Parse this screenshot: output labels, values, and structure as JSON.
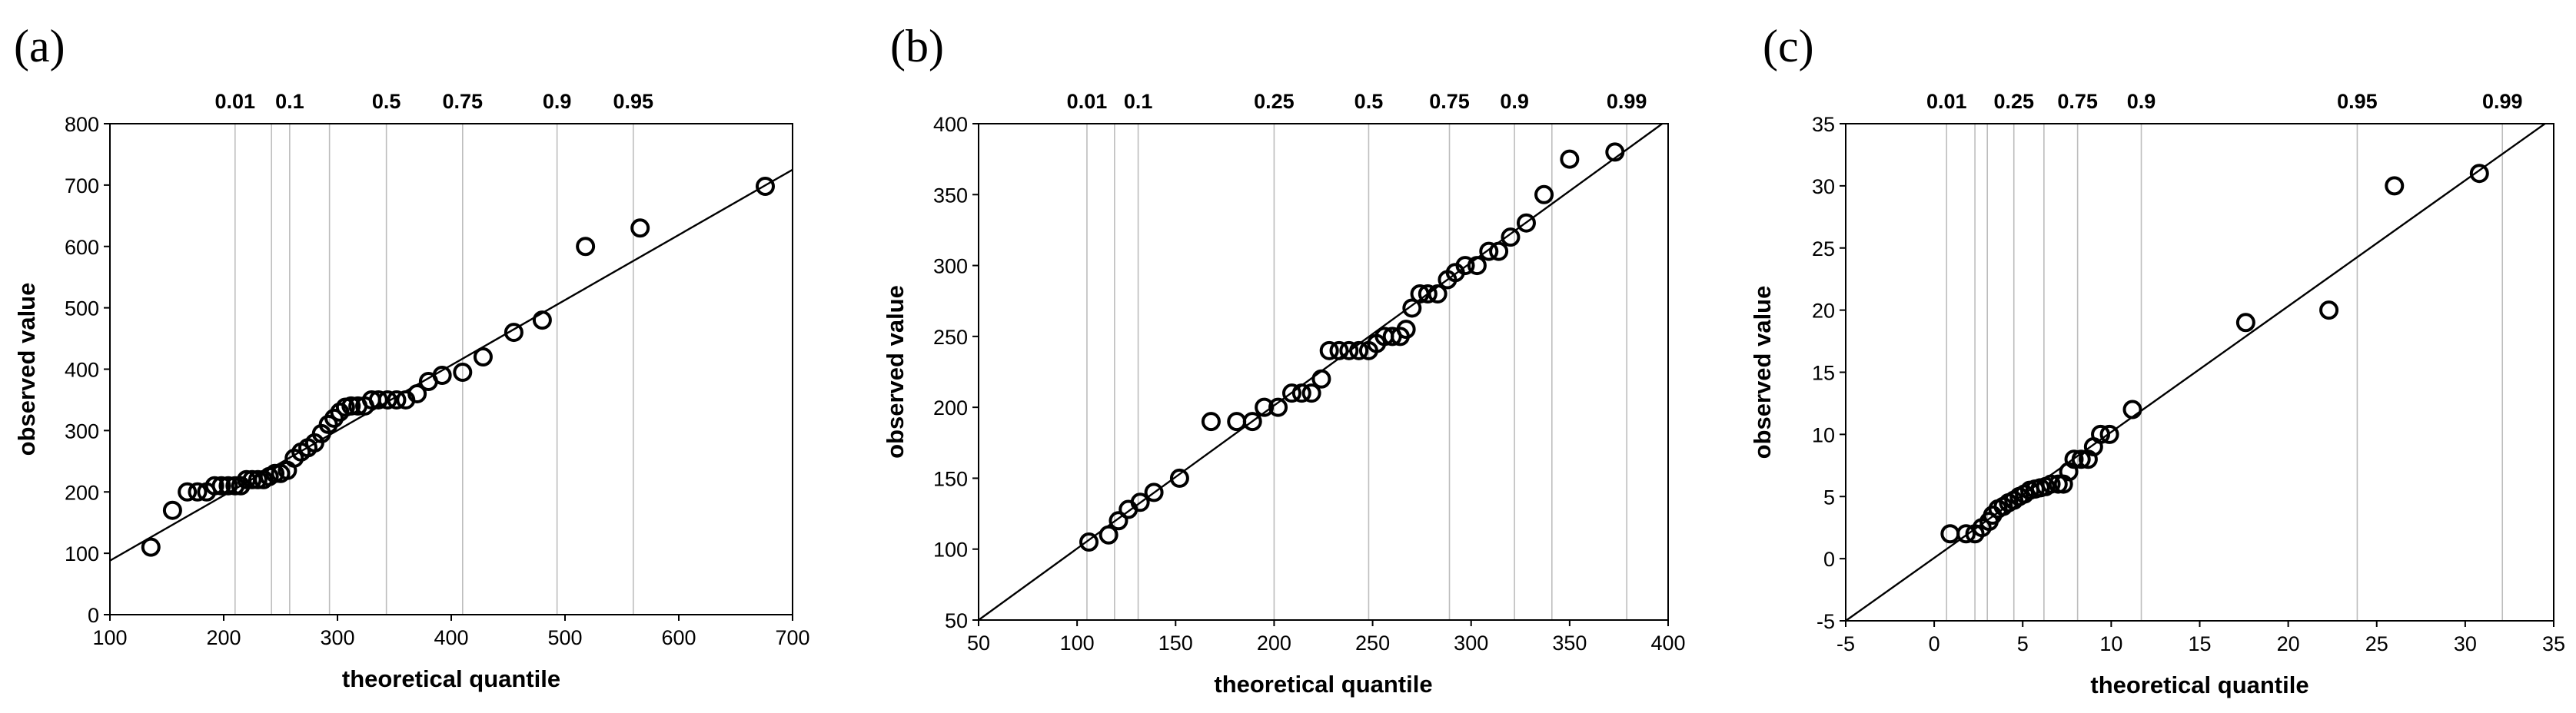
{
  "chart_data": [
    {
      "type": "scatter",
      "panel_label": "(a)",
      "title": "",
      "xlabel": "theoretical quantile",
      "ylabel": "observed value",
      "xlim": [
        100,
        700
      ],
      "ylim": [
        0,
        800
      ],
      "xticks": [
        100,
        200,
        300,
        400,
        500,
        600,
        700
      ],
      "yticks": [
        0,
        100,
        200,
        300,
        400,
        500,
        600,
        700,
        800
      ],
      "x_tick_labels": [
        "100",
        "200",
        "300",
        "400",
        "500",
        "600",
        "700"
      ],
      "y_tick_labels": [
        "0",
        "100",
        "200",
        "300",
        "400",
        "500",
        "600",
        "700",
        "800"
      ],
      "probability_lines": [
        {
          "label": "0.01",
          "x": 210
        },
        {
          "label": "",
          "x": 242
        },
        {
          "label": "0.1",
          "x": 258
        },
        {
          "label": "",
          "x": 293
        },
        {
          "label": "0.5",
          "x": 343
        },
        {
          "label": "0.75",
          "x": 410
        },
        {
          "label": "0.9",
          "x": 493
        },
        {
          "label": "0.95",
          "x": 560
        }
      ],
      "fit_line": [
        [
          100,
          88
        ],
        [
          700,
          725
        ]
      ],
      "points": [
        [
          136,
          110
        ],
        [
          155,
          170
        ],
        [
          168,
          200
        ],
        [
          177,
          200
        ],
        [
          185,
          200
        ],
        [
          192,
          210
        ],
        [
          198,
          210
        ],
        [
          204,
          210
        ],
        [
          210,
          210
        ],
        [
          215,
          210
        ],
        [
          220,
          220
        ],
        [
          225,
          220
        ],
        [
          230,
          220
        ],
        [
          235,
          220
        ],
        [
          240,
          225
        ],
        [
          245,
          230
        ],
        [
          250,
          230
        ],
        [
          256,
          235
        ],
        [
          262,
          255
        ],
        [
          268,
          265
        ],
        [
          274,
          272
        ],
        [
          280,
          280
        ],
        [
          286,
          295
        ],
        [
          292,
          310
        ],
        [
          297,
          320
        ],
        [
          302,
          330
        ],
        [
          307,
          338
        ],
        [
          312,
          340
        ],
        [
          318,
          340
        ],
        [
          324,
          340
        ],
        [
          330,
          350
        ],
        [
          336,
          350
        ],
        [
          344,
          350
        ],
        [
          352,
          350
        ],
        [
          360,
          350
        ],
        [
          370,
          360
        ],
        [
          380,
          380
        ],
        [
          392,
          390
        ],
        [
          410,
          395
        ],
        [
          428,
          420
        ],
        [
          455,
          460
        ],
        [
          480,
          480
        ],
        [
          518,
          600
        ],
        [
          566,
          630
        ],
        [
          676,
          698
        ]
      ]
    },
    {
      "type": "scatter",
      "panel_label": "(b)",
      "title": "",
      "xlabel": "theoretical quantile",
      "ylabel": "observed value",
      "xlim": [
        50,
        400
      ],
      "ylim": [
        50,
        400
      ],
      "xticks": [
        50,
        100,
        150,
        200,
        250,
        300,
        350,
        400
      ],
      "yticks": [
        50,
        100,
        150,
        200,
        250,
        300,
        350,
        400
      ],
      "x_tick_labels": [
        "50",
        "100",
        "150",
        "200",
        "250",
        "300",
        "350",
        "400"
      ],
      "y_tick_labels": [
        "50",
        "100",
        "150",
        "200",
        "250",
        "300",
        "350",
        "400"
      ],
      "probability_lines": [
        {
          "label": "0.01",
          "x": 105
        },
        {
          "label": "",
          "x": 119
        },
        {
          "label": "0.1",
          "x": 131
        },
        {
          "label": "0.25",
          "x": 200
        },
        {
          "label": "0.5",
          "x": 248
        },
        {
          "label": "0.75",
          "x": 289
        },
        {
          "label": "0.9",
          "x": 322
        },
        {
          "label": "",
          "x": 341
        },
        {
          "label": "0.99",
          "x": 379
        }
      ],
      "fit_line": [
        [
          50,
          50
        ],
        [
          400,
          403
        ]
      ],
      "points": [
        [
          106,
          105
        ],
        [
          116,
          110
        ],
        [
          121,
          120
        ],
        [
          126,
          128
        ],
        [
          132,
          133
        ],
        [
          139,
          140
        ],
        [
          152,
          150
        ],
        [
          168,
          190
        ],
        [
          181,
          190
        ],
        [
          189,
          190
        ],
        [
          195,
          200
        ],
        [
          202,
          200
        ],
        [
          209,
          210
        ],
        [
          214,
          210
        ],
        [
          219,
          210
        ],
        [
          224,
          220
        ],
        [
          228,
          240
        ],
        [
          233,
          240
        ],
        [
          238,
          240
        ],
        [
          243,
          240
        ],
        [
          248,
          240
        ],
        [
          252,
          245
        ],
        [
          256,
          250
        ],
        [
          260,
          250
        ],
        [
          264,
          250
        ],
        [
          267,
          255
        ],
        [
          270,
          270
        ],
        [
          274,
          280
        ],
        [
          278,
          280
        ],
        [
          283,
          280
        ],
        [
          288,
          290
        ],
        [
          292,
          295
        ],
        [
          297,
          300
        ],
        [
          303,
          300
        ],
        [
          309,
          310
        ],
        [
          314,
          310
        ],
        [
          320,
          320
        ],
        [
          328,
          330
        ],
        [
          337,
          350
        ],
        [
          350,
          375
        ],
        [
          373,
          380
        ]
      ]
    },
    {
      "type": "scatter",
      "panel_label": "(c)",
      "title": "",
      "xlabel": "theoretical quantile",
      "ylabel": "observed value",
      "xlim": [
        -5,
        35
      ],
      "ylim": [
        -5,
        35
      ],
      "xticks": [
        -5,
        0,
        5,
        10,
        15,
        20,
        25,
        30,
        35
      ],
      "yticks": [
        -5,
        0,
        5,
        10,
        15,
        20,
        25,
        30,
        35
      ],
      "x_tick_labels": [
        "-5",
        "0",
        "5",
        "10",
        "15",
        "20",
        "25",
        "30",
        "35"
      ],
      "y_tick_labels": [
        "-5",
        "0",
        "5",
        "10",
        "15",
        "20",
        "25",
        "30",
        "35"
      ],
      "probability_lines": [
        {
          "label": "0.01",
          "x": 0.7
        },
        {
          "label": "",
          "x": 2.3
        },
        {
          "label": "",
          "x": 3.0
        },
        {
          "label": "0.25",
          "x": 4.5
        },
        {
          "label": "",
          "x": 6.2
        },
        {
          "label": "0.75",
          "x": 8.1
        },
        {
          "label": "0.9",
          "x": 11.7
        },
        {
          "label": "0.95",
          "x": 23.9
        },
        {
          "label": "0.99",
          "x": 32.1
        }
      ],
      "fit_line": [
        [
          -5,
          -5
        ],
        [
          35,
          35.5
        ]
      ],
      "points": [
        [
          0.9,
          2
        ],
        [
          1.8,
          2
        ],
        [
          2.3,
          2
        ],
        [
          2.7,
          2.5
        ],
        [
          3.1,
          3
        ],
        [
          3.3,
          3.5
        ],
        [
          3.6,
          4
        ],
        [
          3.9,
          4.2
        ],
        [
          4.2,
          4.5
        ],
        [
          4.5,
          4.7
        ],
        [
          4.8,
          5
        ],
        [
          5.1,
          5.2
        ],
        [
          5.4,
          5.5
        ],
        [
          5.7,
          5.6
        ],
        [
          6.0,
          5.7
        ],
        [
          6.3,
          5.8
        ],
        [
          6.6,
          6
        ],
        [
          7.0,
          6
        ],
        [
          7.3,
          6
        ],
        [
          7.6,
          7
        ],
        [
          7.9,
          8
        ],
        [
          8.3,
          8
        ],
        [
          8.7,
          8
        ],
        [
          9.0,
          9
        ],
        [
          9.4,
          10
        ],
        [
          9.9,
          10
        ],
        [
          11.2,
          12
        ],
        [
          17.6,
          19
        ],
        [
          22.3,
          20
        ],
        [
          26.0,
          30
        ],
        [
          30.8,
          31
        ]
      ]
    }
  ]
}
